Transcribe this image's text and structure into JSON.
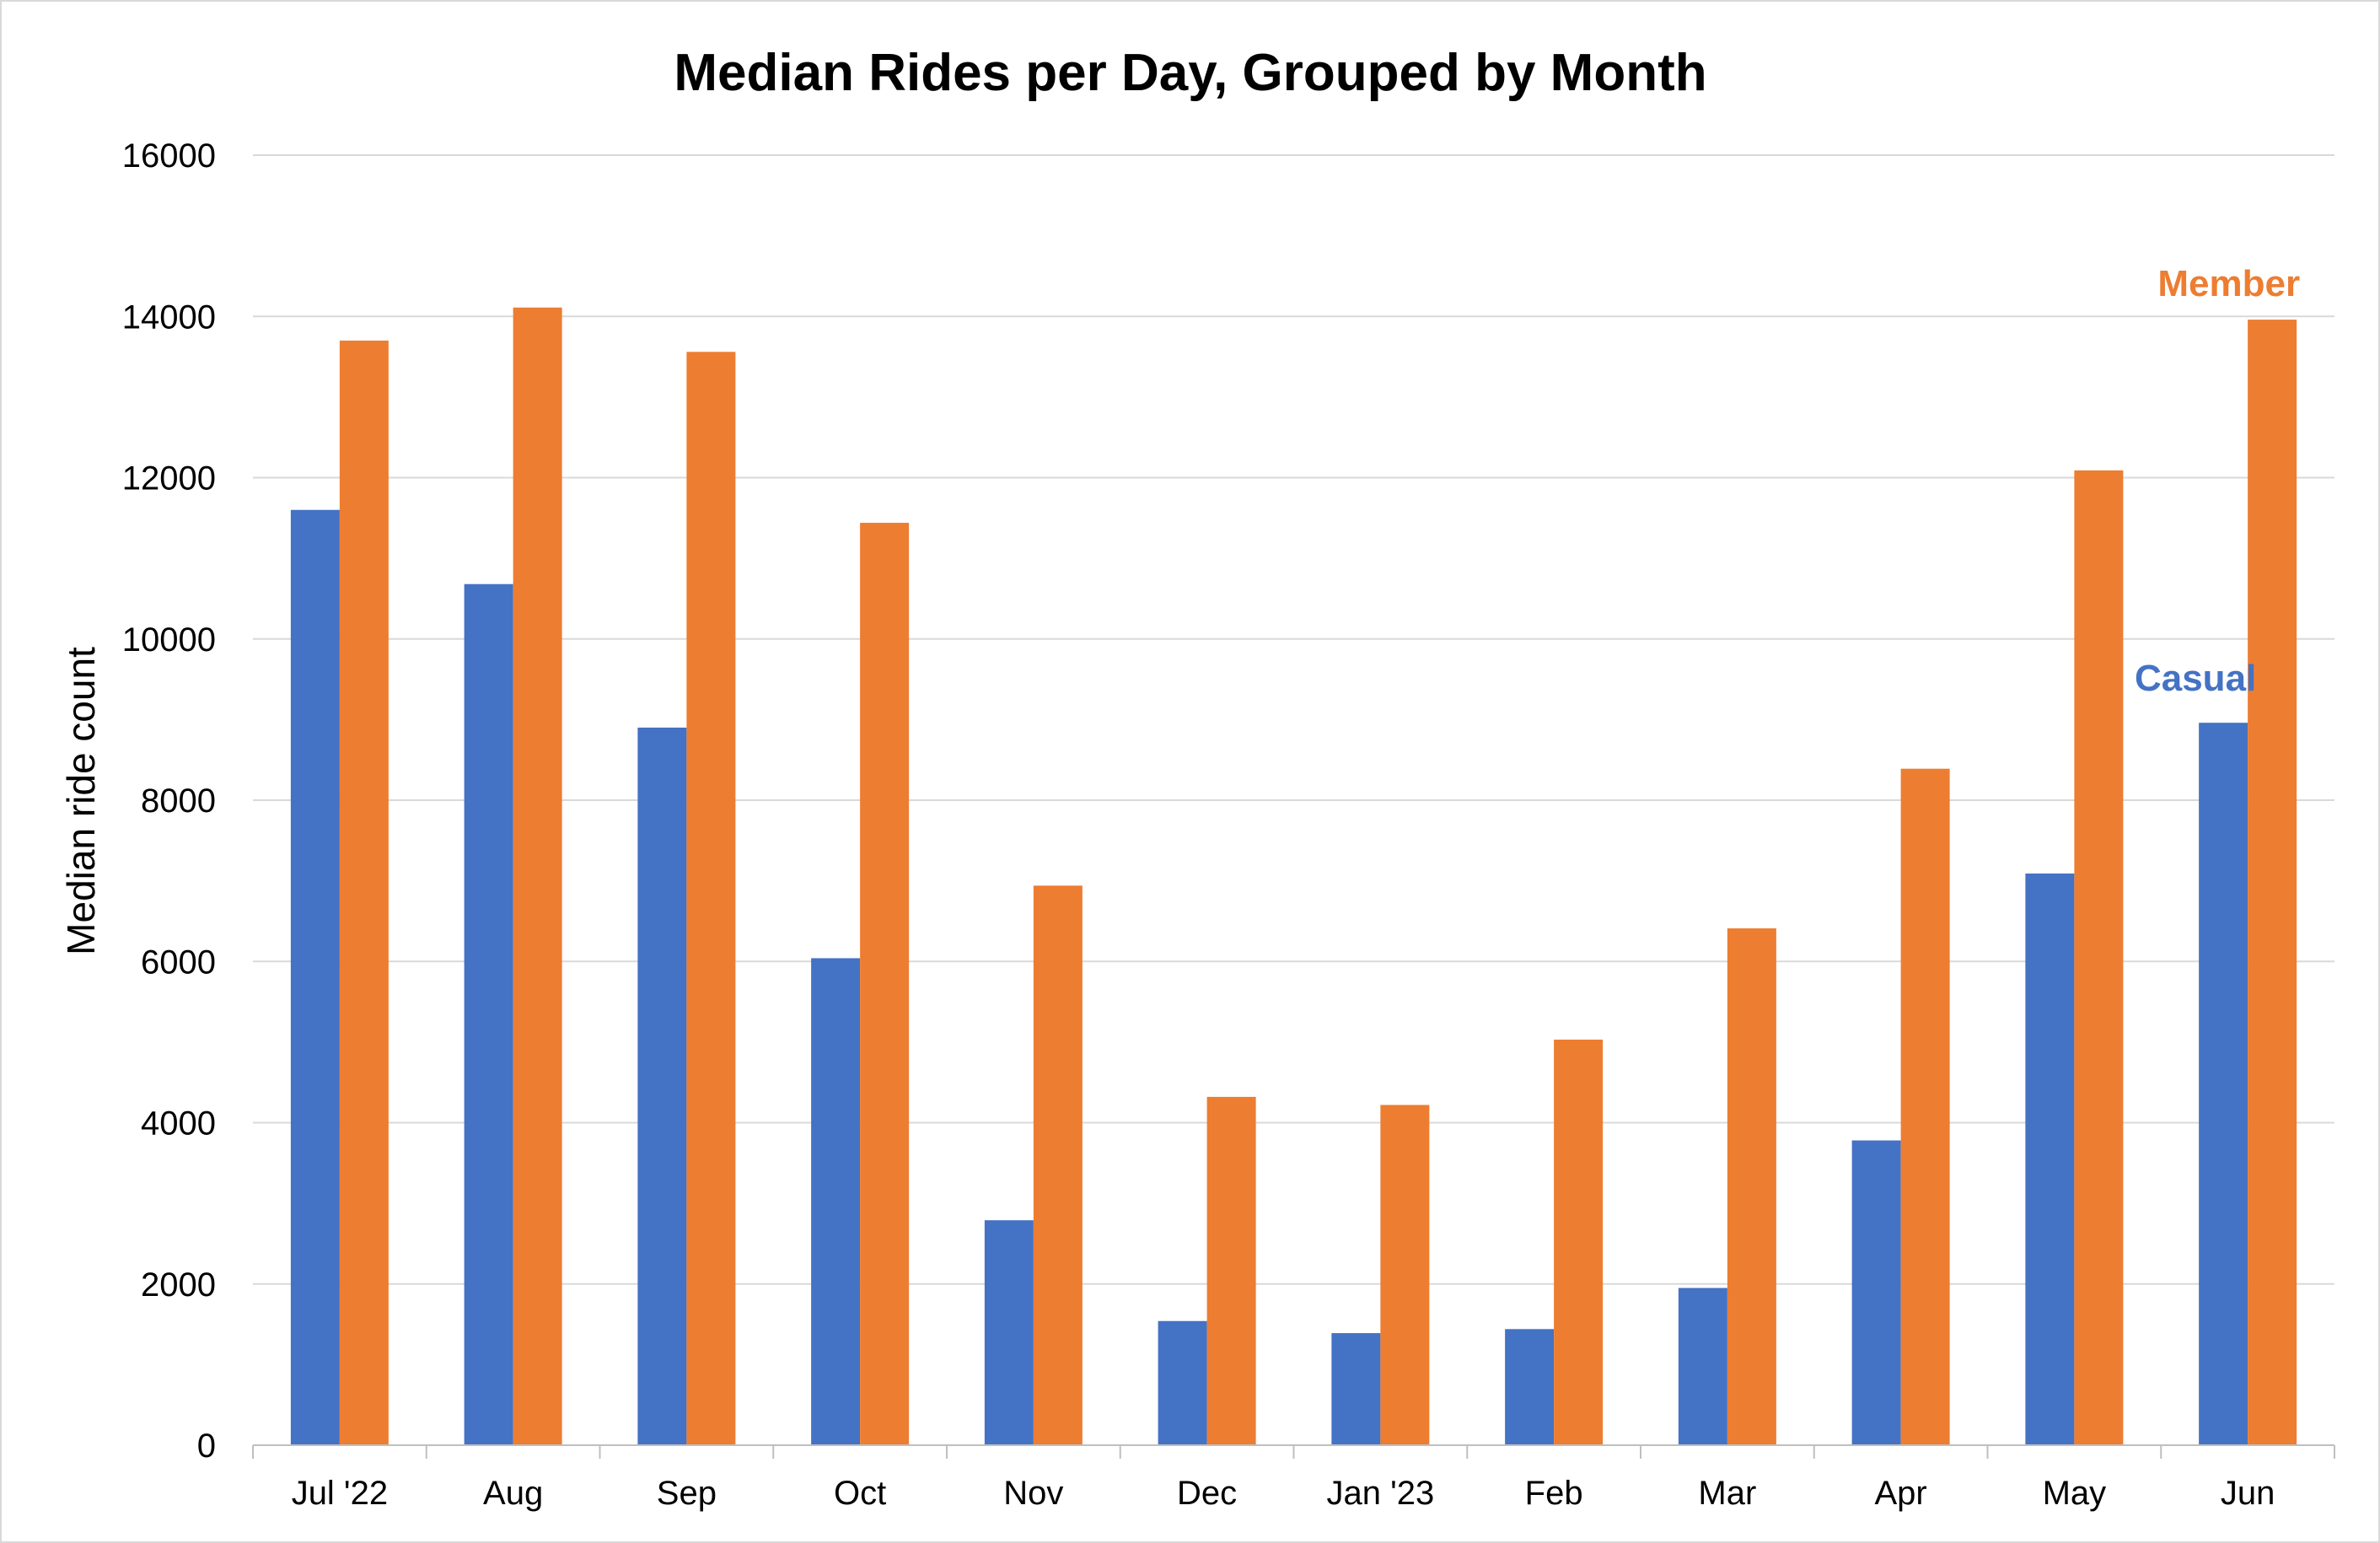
{
  "chart_data": {
    "type": "bar",
    "title": "Median Rides per Day, Grouped by Month",
    "xlabel": "",
    "ylabel": "Median ride count",
    "ylim": [
      0,
      16000
    ],
    "yticks": [
      0,
      2000,
      4000,
      6000,
      8000,
      10000,
      12000,
      14000,
      16000
    ],
    "grid": true,
    "legend": "none",
    "categories": [
      "Jul '22",
      "Aug",
      "Sep",
      "Oct",
      "Nov",
      "Dec",
      "Jan '23",
      "Feb",
      "Mar",
      "Apr",
      "May",
      "Jun"
    ],
    "series": [
      {
        "name": "Casual",
        "color": "#4472c4",
        "values": [
          11600,
          10680,
          8900,
          6040,
          2790,
          1540,
          1390,
          1440,
          1950,
          3780,
          7090,
          8960
        ]
      },
      {
        "name": "Member",
        "color": "#ed7d31",
        "values": [
          13700,
          14110,
          13560,
          11440,
          6940,
          4320,
          4220,
          5030,
          6410,
          8390,
          12090,
          13960
        ]
      }
    ],
    "annotations": [
      {
        "text": "Member",
        "series": "Member",
        "category": "Jun",
        "color": "#ed7d31"
      },
      {
        "text": "Casual",
        "series": "Casual",
        "category": "Jun",
        "color": "#4472c4"
      }
    ]
  }
}
